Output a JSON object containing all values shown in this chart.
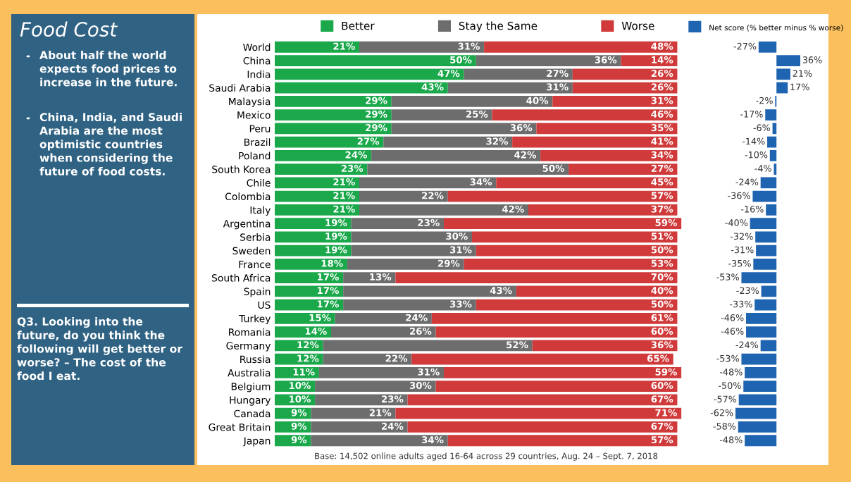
{
  "chart_data": [
    {
      "type": "bar",
      "orientation": "horizontal",
      "stacked": true,
      "tick_labels": "y",
      "legend": "top",
      "grid": false,
      "title": "Food Cost",
      "annotations": [
        "About half the world expects food prices to increase in the future.",
        "China, India, and Saudi Arabia are the most optimistic countries when considering the future of food costs.",
        "Q3. Looking into the future, do you think the following will get better or worse? – The cost of the food I eat.",
        "Base: 14,502 online adults aged 16-64 across 29 countries, Aug. 24 – Sept. 7, 2018"
      ],
      "categories": [
        "World",
        "China",
        "India",
        "Saudi Arabia",
        "Malaysia",
        "Mexico",
        "Peru",
        "Brazil",
        "Poland",
        "South Korea",
        "Chile",
        "Colombia",
        "Italy",
        "Argentina",
        "Serbia",
        "Sweden",
        "France",
        "South Africa",
        "Spain",
        "US",
        "Turkey",
        "Romania",
        "Germany",
        "Russia",
        "Australia",
        "Belgium",
        "Hungary",
        "Canada",
        "Great Britain",
        "Japan"
      ],
      "series": [
        {
          "name": "Better",
          "color": "#1aa84b",
          "values": [
            21,
            50,
            47,
            43,
            29,
            29,
            29,
            27,
            24,
            23,
            21,
            21,
            21,
            19,
            19,
            19,
            18,
            17,
            17,
            17,
            15,
            14,
            12,
            12,
            11,
            10,
            10,
            9,
            9,
            9
          ],
          "value_labels": [
            "21%",
            "50%",
            "47%",
            "43%",
            "29%",
            "29%",
            "29%",
            "27%",
            "24%",
            "23%",
            "21%",
            "21%",
            "21%",
            "19%",
            "19%",
            "19%",
            "18%",
            "17%",
            "17%",
            "17%",
            "15%",
            "14%",
            "12%",
            "12%",
            "11%",
            "10%",
            "10%",
            "9%",
            "9%",
            "9%"
          ]
        },
        {
          "name": "Stay the Same",
          "color": "#6d6d6d",
          "values": [
            31,
            36,
            27,
            31,
            40,
            25,
            36,
            32,
            42,
            50,
            34,
            22,
            42,
            23,
            30,
            31,
            29,
            13,
            43,
            33,
            24,
            26,
            52,
            22,
            31,
            30,
            23,
            21,
            24,
            34
          ],
          "value_labels": [
            "31%",
            "36%",
            "27%",
            "31%",
            "40%",
            "25%",
            "36%",
            "32%",
            "42%",
            "50%",
            "34%",
            "22%",
            "42%",
            "23%",
            "30%",
            "31%",
            "29%",
            "13%",
            "43%",
            "33%",
            "24%",
            "26%",
            "52%",
            "22%",
            "31%",
            "30%",
            "23%",
            "21%",
            "24%",
            "34%"
          ]
        },
        {
          "name": "Worse",
          "color": "#d03a3a",
          "values": [
            48,
            14,
            26,
            26,
            31,
            46,
            35,
            41,
            34,
            27,
            45,
            57,
            37,
            59,
            51,
            50,
            53,
            70,
            40,
            50,
            61,
            60,
            36,
            65,
            59,
            60,
            67,
            71,
            67,
            57
          ],
          "value_labels": [
            "48%",
            "14%",
            "26%",
            "26%",
            "31%",
            "46%",
            "35%",
            "41%",
            "34%",
            "27%",
            "45%",
            "57%",
            "37%",
            "59%",
            "51%",
            "50%",
            "53%",
            "70%",
            "40%",
            "50%",
            "61%",
            "60%",
            "36%",
            "65%",
            "59%",
            "60%",
            "67%",
            "71%",
            "67%",
            "57%"
          ]
        }
      ]
    },
    {
      "type": "bar",
      "orientation": "horizontal",
      "tick_labels": false,
      "legend": "top",
      "grid": false,
      "categories": [
        null,
        null,
        null,
        null,
        null,
        null,
        null,
        null,
        null,
        null,
        null,
        null,
        null,
        null,
        null,
        null,
        null,
        null,
        null,
        null,
        null,
        null,
        null,
        null,
        null,
        null,
        null,
        null,
        null,
        null
      ],
      "series": [
        {
          "name": "Net score (% better minus % worse)",
          "color": "#1f64b0",
          "values": [
            -27,
            36,
            21,
            17,
            -2,
            -17,
            -6,
            -14,
            -10,
            -4,
            -24,
            -36,
            -16,
            -40,
            -32,
            -31,
            -35,
            -53,
            -23,
            -33,
            -46,
            -46,
            -24,
            -53,
            -48,
            -50,
            -57,
            -62,
            -58,
            -48
          ],
          "value_labels": [
            "-27%",
            "36%",
            "21%",
            "17%",
            "-2%",
            "-17%",
            "-6%",
            "-14%",
            "-10%",
            "-4%",
            "-24%",
            "-36%",
            "-16%",
            "-40%",
            "-32%",
            "-31%",
            "-35%",
            "-53%",
            "-23%",
            "-33%",
            "-46%",
            "-46%",
            "-24%",
            "-53%",
            "-48%",
            "-50%",
            "-57%",
            "-62%",
            "-58%",
            "-48%"
          ]
        }
      ]
    }
  ]
}
